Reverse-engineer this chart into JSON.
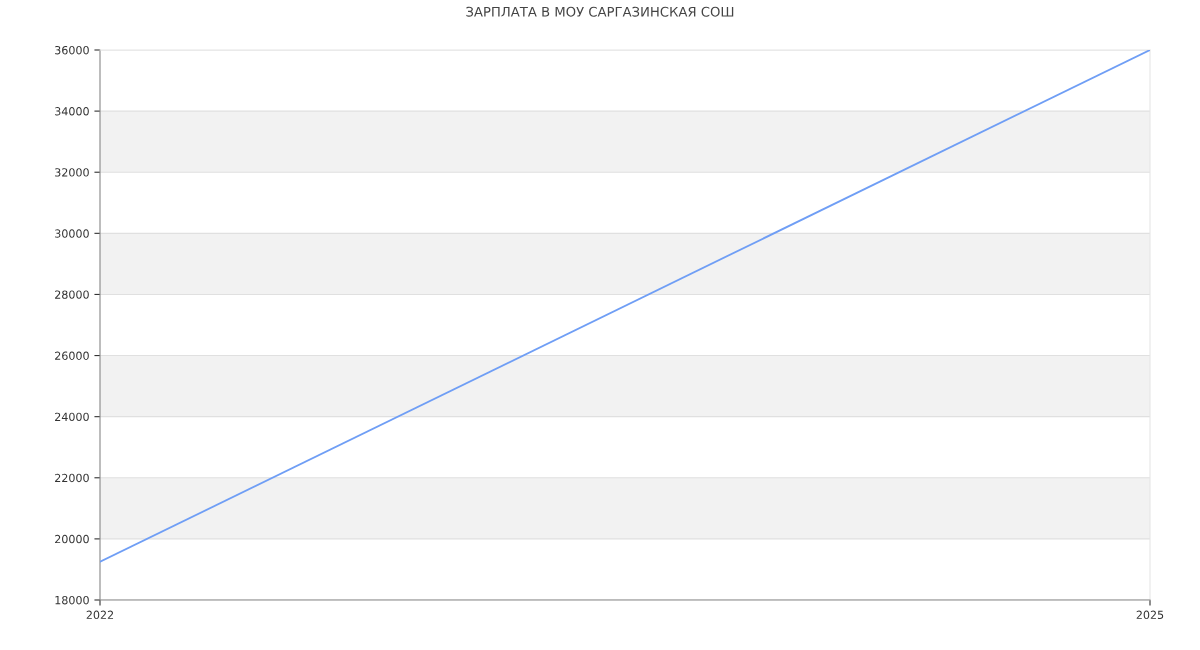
{
  "chart_data": {
    "type": "line",
    "title": "ЗАРПЛАТА В МОУ САРГАЗИНСКАЯ СОШ",
    "x": [
      2022,
      2025
    ],
    "series": [
      {
        "color": "#6f9ef5",
        "values": [
          19250,
          36000
        ]
      }
    ],
    "xlim": [
      2022,
      2025
    ],
    "xticks": [
      2022,
      2025
    ],
    "ylim": [
      18000,
      36000
    ],
    "yticks": [
      18000,
      20000,
      22000,
      24000,
      26000,
      28000,
      30000,
      32000,
      34000,
      36000
    ],
    "bands": [
      {
        "axis": "y",
        "from": 20000,
        "to": 22000,
        "color": "#f2f2f2"
      },
      {
        "axis": "y",
        "from": 24000,
        "to": 26000,
        "color": "#f2f2f2"
      },
      {
        "axis": "y",
        "from": 28000,
        "to": 30000,
        "color": "#f2f2f2"
      },
      {
        "axis": "y",
        "from": 32000,
        "to": 34000,
        "color": "#f2f2f2"
      }
    ],
    "grid": "y",
    "marker": "none",
    "line_style": "solid"
  }
}
